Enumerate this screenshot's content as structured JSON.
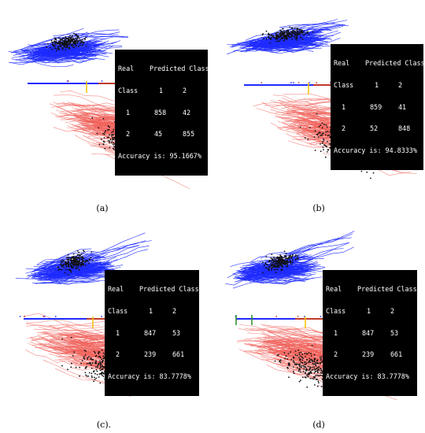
{
  "figure": {
    "panels": [
      {
        "id": "a",
        "caption": "(a)",
        "matrix": {
          "header_left": "Real",
          "header_right": "Predicted Class",
          "sub_left": "Class",
          "col1": "1",
          "col2": "2",
          "rows": [
            {
              "label": "1",
              "v1": "858",
              "v2": "42"
            },
            {
              "label": "2",
              "v1": "45",
              "v2": "855"
            }
          ],
          "accuracy": "Accuracy is: 95.1667%"
        }
      },
      {
        "id": "b",
        "caption": "(b)",
        "matrix": {
          "header_left": "Real",
          "header_right": "Predicted Class",
          "sub_left": "Class",
          "col1": "1",
          "col2": "2",
          "rows": [
            {
              "label": "1",
              "v1": "859",
              "v2": "41"
            },
            {
              "label": "2",
              "v1": "52",
              "v2": "848"
            }
          ],
          "accuracy": "Accuracy is: 94.8333%"
        }
      },
      {
        "id": "c",
        "caption": "(c).",
        "matrix": {
          "header_left": "Real",
          "header_right": "Predicted Class",
          "sub_left": "Class",
          "col1": "1",
          "col2": "2",
          "rows": [
            {
              "label": "1",
              "v1": "847",
              "v2": "53"
            },
            {
              "label": "2",
              "v1": "239",
              "v2": "661"
            }
          ],
          "accuracy": "Accuracy is: 83.7778%"
        }
      },
      {
        "id": "d",
        "caption": "(d)",
        "matrix": {
          "header_left": "Real",
          "header_right": "Predicted Class",
          "sub_left": "Class",
          "col1": "1",
          "col2": "2",
          "rows": [
            {
              "label": "1",
              "v1": "847",
              "v2": "53"
            },
            {
              "label": "2",
              "v1": "239",
              "v2": "661"
            }
          ],
          "accuracy": "Accuracy is: 83.7778%"
        }
      }
    ],
    "colors": {
      "class1": "#1f2bff",
      "class2": "#f0605a",
      "points": "#111111",
      "threshold": "#f2c200",
      "marker_green": "#2a8a2a",
      "axis_red": "#c0392b"
    }
  }
}
